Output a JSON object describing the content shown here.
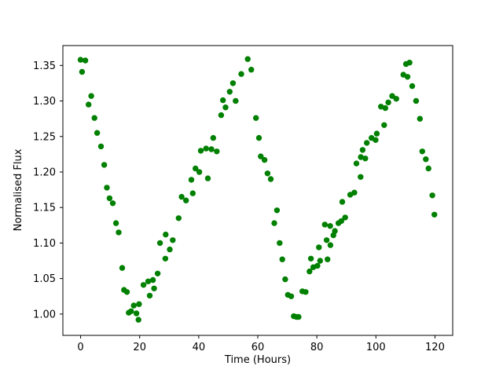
{
  "figure": {
    "background": "#ffffff",
    "spine_color": "#000000",
    "tick_color": "#000000"
  },
  "chart_data": {
    "type": "scatter",
    "title": "",
    "xlabel": "Time (Hours)",
    "ylabel": "Normalised Flux",
    "marker_color": "#008000",
    "marker_radius_px": 3.7,
    "grid": false,
    "legend": null,
    "xlim": [
      -6,
      126
    ],
    "ylim": [
      0.97,
      1.378
    ],
    "x_tick_values": [
      0,
      20,
      40,
      60,
      80,
      100,
      120
    ],
    "x_tick_labels": [
      "0",
      "20",
      "40",
      "60",
      "80",
      "100",
      "120"
    ],
    "y_tick_values": [
      1.0,
      1.05,
      1.1,
      1.15,
      1.2,
      1.25,
      1.3,
      1.35
    ],
    "y_tick_labels": [
      "1.00",
      "1.05",
      "1.10",
      "1.15",
      "1.20",
      "1.25",
      "1.30",
      "1.35"
    ],
    "points": [
      [
        0.0,
        1.358
      ],
      [
        0.5,
        1.341
      ],
      [
        1.6,
        1.357
      ],
      [
        2.7,
        1.295
      ],
      [
        3.6,
        1.307
      ],
      [
        4.7,
        1.276
      ],
      [
        5.6,
        1.255
      ],
      [
        6.9,
        1.236
      ],
      [
        8.0,
        1.21
      ],
      [
        8.9,
        1.178
      ],
      [
        9.8,
        1.163
      ],
      [
        10.9,
        1.156
      ],
      [
        12.0,
        1.128
      ],
      [
        12.9,
        1.115
      ],
      [
        14.1,
        1.065
      ],
      [
        14.7,
        1.034
      ],
      [
        15.7,
        1.031
      ],
      [
        16.3,
        1.002
      ],
      [
        17.1,
        1.004
      ],
      [
        18.0,
        1.012
      ],
      [
        18.9,
        1.001
      ],
      [
        19.6,
        0.992
      ],
      [
        19.8,
        1.014
      ],
      [
        21.3,
        1.041
      ],
      [
        22.9,
        1.046
      ],
      [
        23.4,
        1.026
      ],
      [
        24.5,
        1.048
      ],
      [
        24.9,
        1.036
      ],
      [
        26.1,
        1.057
      ],
      [
        26.9,
        1.1
      ],
      [
        28.7,
        1.078
      ],
      [
        28.8,
        1.112
      ],
      [
        30.2,
        1.091
      ],
      [
        31.2,
        1.104
      ],
      [
        33.2,
        1.135
      ],
      [
        34.2,
        1.165
      ],
      [
        35.7,
        1.16
      ],
      [
        37.5,
        1.189
      ],
      [
        38.0,
        1.17
      ],
      [
        38.9,
        1.205
      ],
      [
        40.2,
        1.2
      ],
      [
        40.7,
        1.23
      ],
      [
        42.5,
        1.233
      ],
      [
        43.1,
        1.191
      ],
      [
        44.3,
        1.232
      ],
      [
        44.9,
        1.248
      ],
      [
        46.1,
        1.229
      ],
      [
        47.6,
        1.28
      ],
      [
        48.2,
        1.301
      ],
      [
        49.1,
        1.291
      ],
      [
        50.5,
        1.313
      ],
      [
        51.6,
        1.325
      ],
      [
        52.5,
        1.3
      ],
      [
        54.4,
        1.338
      ],
      [
        56.6,
        1.359
      ],
      [
        57.8,
        1.344
      ],
      [
        59.4,
        1.276
      ],
      [
        60.4,
        1.248
      ],
      [
        61.0,
        1.222
      ],
      [
        62.3,
        1.217
      ],
      [
        63.3,
        1.198
      ],
      [
        64.4,
        1.19
      ],
      [
        65.6,
        1.128
      ],
      [
        66.5,
        1.146
      ],
      [
        67.4,
        1.1
      ],
      [
        68.3,
        1.077
      ],
      [
        69.3,
        1.049
      ],
      [
        70.2,
        1.027
      ],
      [
        71.3,
        1.025
      ],
      [
        72.2,
        0.997
      ],
      [
        73.1,
        0.996
      ],
      [
        73.8,
        0.996
      ],
      [
        75.1,
        1.032
      ],
      [
        76.2,
        1.031
      ],
      [
        77.5,
        1.06
      ],
      [
        78.0,
        1.078
      ],
      [
        78.8,
        1.066
      ],
      [
        80.2,
        1.068
      ],
      [
        80.7,
        1.094
      ],
      [
        81.1,
        1.075
      ],
      [
        82.7,
        1.126
      ],
      [
        83.3,
        1.104
      ],
      [
        83.6,
        1.077
      ],
      [
        84.5,
        1.124
      ],
      [
        84.6,
        1.097
      ],
      [
        85.6,
        1.111
      ],
      [
        86.1,
        1.117
      ],
      [
        87.3,
        1.128
      ],
      [
        88.3,
        1.131
      ],
      [
        88.6,
        1.158
      ],
      [
        89.6,
        1.136
      ],
      [
        91.3,
        1.168
      ],
      [
        92.7,
        1.171
      ],
      [
        93.4,
        1.212
      ],
      [
        94.8,
        1.193
      ],
      [
        94.9,
        1.221
      ],
      [
        95.5,
        1.231
      ],
      [
        96.4,
        1.219
      ],
      [
        96.9,
        1.241
      ],
      [
        98.5,
        1.248
      ],
      [
        99.9,
        1.245
      ],
      [
        100.3,
        1.254
      ],
      [
        101.7,
        1.292
      ],
      [
        102.8,
        1.266
      ],
      [
        103.2,
        1.29
      ],
      [
        104.2,
        1.298
      ],
      [
        105.5,
        1.307
      ],
      [
        106.9,
        1.303
      ],
      [
        109.3,
        1.337
      ],
      [
        110.2,
        1.352
      ],
      [
        110.7,
        1.334
      ],
      [
        111.4,
        1.354
      ],
      [
        112.3,
        1.321
      ],
      [
        113.6,
        1.3
      ],
      [
        114.9,
        1.275
      ],
      [
        115.7,
        1.229
      ],
      [
        116.9,
        1.218
      ],
      [
        117.8,
        1.205
      ],
      [
        119.1,
        1.167
      ],
      [
        119.8,
        1.14
      ]
    ]
  }
}
